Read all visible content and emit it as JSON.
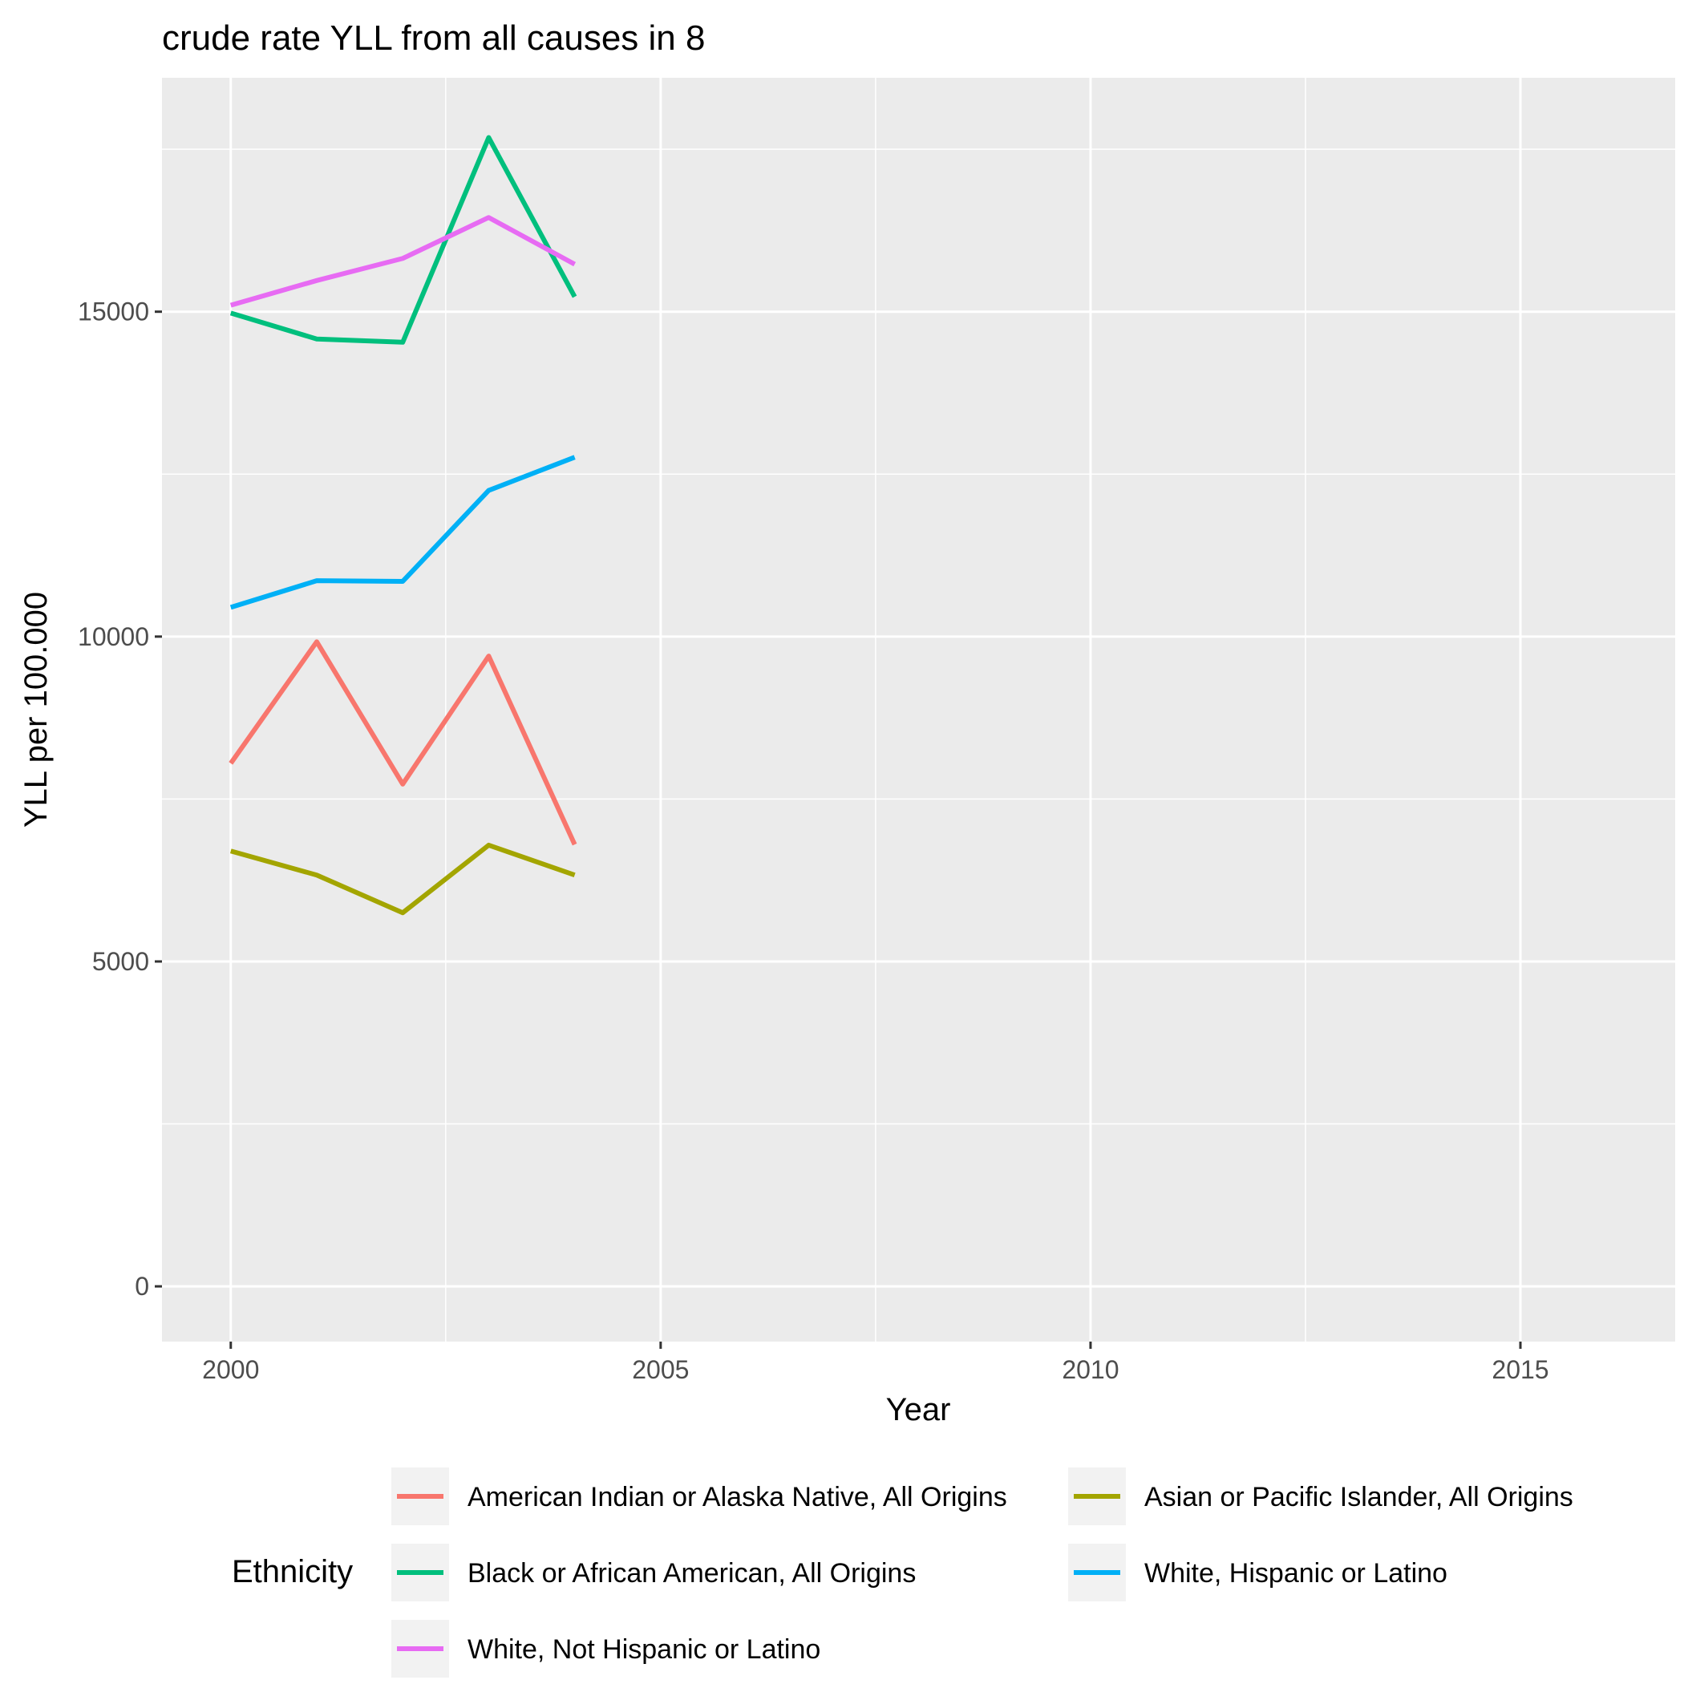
{
  "chart_data": {
    "type": "line",
    "title": "crude rate YLL from all causes in 8",
    "xlabel": "Year",
    "ylabel": "YLL per 100.000",
    "xlim": [
      1999.2,
      2016.8
    ],
    "ylim": [
      -850,
      18600
    ],
    "x_ticks": [
      2000,
      2005,
      2010,
      2015
    ],
    "y_ticks": [
      0,
      5000,
      10000,
      15000
    ],
    "grid": true,
    "legend": {
      "title": "Ethnicity",
      "position": "bottom"
    },
    "x": [
      2000,
      2001,
      2002,
      2003,
      2004
    ],
    "series": [
      {
        "name": "American Indian or Alaska Native, All Origins",
        "color": "#F8766D",
        "values": [
          8050,
          9920,
          7730,
          9700,
          6800
        ]
      },
      {
        "name": "Asian or Pacific Islander, All Origins",
        "color": "#A3A500",
        "values": [
          6700,
          6330,
          5750,
          6790,
          6330
        ]
      },
      {
        "name": "Black or African American, All Origins",
        "color": "#00BF7D",
        "values": [
          14980,
          14580,
          14530,
          17680,
          15230
        ]
      },
      {
        "name": "White, Hispanic or Latino",
        "color": "#00B0F6",
        "values": [
          10450,
          10860,
          10850,
          12250,
          12760
        ]
      },
      {
        "name": "White, Not Hispanic or Latino",
        "color": "#E76BF3",
        "values": [
          15100,
          15480,
          15820,
          16450,
          15730
        ]
      }
    ]
  }
}
